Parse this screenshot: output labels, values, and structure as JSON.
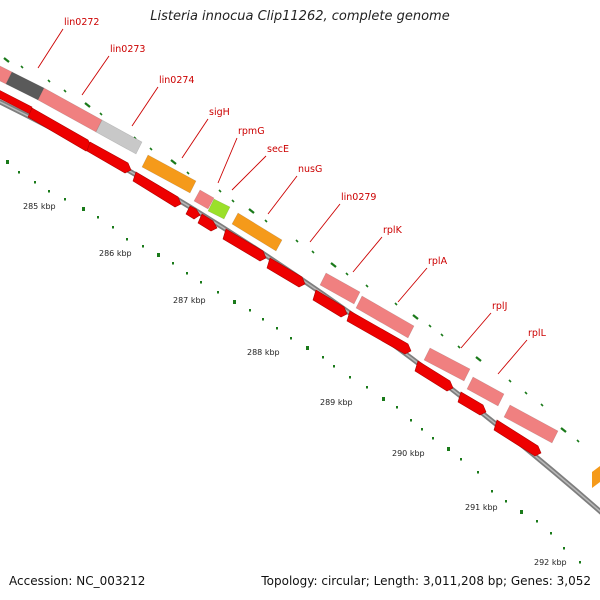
{
  "title": "Listeria innocua Clip11262, complete genome",
  "footer": {
    "accession": "Accession: NC_003212",
    "summary": "Topology: circular; Length: 3,011,208 bp; Genes: 3,052"
  },
  "colors": {
    "backbone": "#8c8c8c",
    "forward_cds": "#ee0000",
    "tick": "#1a7a1a",
    "label": "#cc0000"
  },
  "kbp_labels": [
    "285 kbp",
    "286 kbp",
    "287 kbp",
    "288 kbp",
    "289 kbp",
    "290 kbp",
    "291 kbp",
    "292 kbp"
  ],
  "genes": [
    {
      "name": "lin0272",
      "color": "#f08080"
    },
    {
      "name": "lin0273",
      "color": "#5a5a5a"
    },
    {
      "name": "lin0274",
      "color": "#f08080"
    },
    {
      "name": "sigH",
      "color": "#c8c8c8"
    },
    {
      "name": "rpmG",
      "color": "#f59a1a"
    },
    {
      "name": "secE",
      "color": "#f08080"
    },
    {
      "name": "nusG",
      "color": "#9be02a"
    },
    {
      "name": "lin0279",
      "color": "#f59a1a"
    },
    {
      "name": "rplK",
      "color": "#f08080"
    },
    {
      "name": "rplA",
      "color": "#f08080"
    },
    {
      "name": "rplJ",
      "color": "#f08080"
    },
    {
      "name": "rplL",
      "color": "#f08080"
    }
  ]
}
